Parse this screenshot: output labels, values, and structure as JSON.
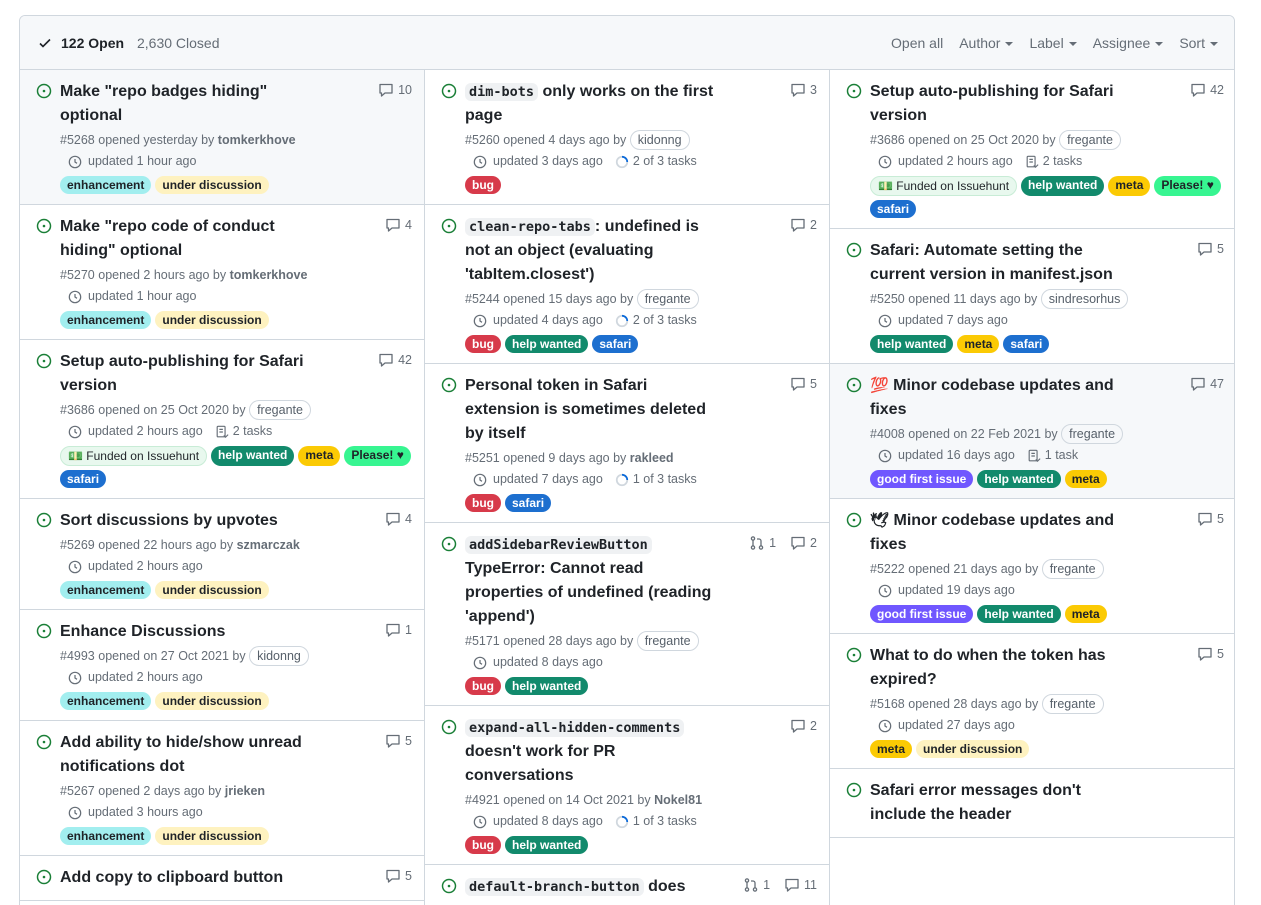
{
  "header": {
    "open_count": "122 Open",
    "closed_count": "2,630 Closed",
    "filters": [
      "Open all",
      "Author",
      "Label",
      "Assignee",
      "Sort"
    ]
  },
  "columns": [
    [
      {
        "title": "Make \"repo badges hiding\" optional",
        "comments": "10",
        "number": "#5268",
        "opened": "opened yesterday by",
        "author": "tomkerkhove",
        "updated": "updated 1 hour ago",
        "labels": [
          "enhancement",
          "under discussion"
        ]
      },
      {
        "title": "Make \"repo code of conduct hiding\" optional",
        "comments": "4",
        "number": "#5270",
        "opened": "opened 2 hours ago by",
        "author": "tomkerkhove",
        "updated": "updated 1 hour ago",
        "labels": [
          "enhancement",
          "under discussion"
        ]
      },
      {
        "title": "Setup auto-publishing for Safari version",
        "comments": "42",
        "number": "#3686",
        "opened": "opened on 25 Oct 2020 by",
        "author": "fregante",
        "updated": "updated 2 hours ago",
        "tasks": "2 tasks",
        "labels": [
          "💵 Funded on Issuehunt",
          "help wanted",
          "meta",
          "Please! ♥",
          "safari"
        ]
      },
      {
        "title": "Sort discussions by upvotes",
        "comments": "4",
        "number": "#5269",
        "opened": "opened 22 hours ago by",
        "author": "szmarczak",
        "updated": "updated 2 hours ago",
        "labels": [
          "enhancement",
          "under discussion"
        ]
      },
      {
        "title": "Enhance Discussions",
        "comments": "1",
        "number": "#4993",
        "opened": "opened on 27 Oct 2021 by",
        "author": "kidonng",
        "updated": "updated 2 hours ago",
        "labels": [
          "enhancement",
          "under discussion"
        ]
      },
      {
        "title": "Add ability to hide/show unread notifications dot",
        "comments": "5",
        "number": "#5267",
        "opened": "opened 2 days ago by",
        "author": "jrieken",
        "updated": "updated 3 hours ago",
        "labels": [
          "enhancement",
          "under discussion"
        ]
      },
      {
        "title": "Add copy to clipboard button",
        "comments": "5"
      }
    ],
    [
      {
        "code": "dim-bots",
        "title": " only works on the first page",
        "comments": "3",
        "number": "#5260",
        "opened": "opened 4 days ago by",
        "author": "kidonng",
        "updated": "updated 3 days ago",
        "tasks": "2 of 3 tasks",
        "labels": [
          "bug"
        ]
      },
      {
        "code": "clean-repo-tabs",
        "title": ": undefined is not an object (evaluating 'tabItem.closest')",
        "comments": "2",
        "number": "#5244",
        "opened": "opened 15 days ago by",
        "author": "fregante",
        "updated": "updated 4 days ago",
        "tasks": "2 of 3 tasks",
        "labels": [
          "bug",
          "help wanted",
          "safari"
        ]
      },
      {
        "title": "Personal token in Safari extension is sometimes deleted by itself",
        "comments": "5",
        "number": "#5251",
        "opened": "opened 9 days ago by",
        "author": "rakleed",
        "updated": "updated 7 days ago",
        "tasks": "1 of 3 tasks",
        "labels": [
          "bug",
          "safari"
        ]
      },
      {
        "code": "addSidebarReviewButton",
        "title": " TypeError: Cannot read properties of undefined (reading 'append')",
        "prs": "1",
        "comments": "2",
        "number": "#5171",
        "opened": "opened 28 days ago by",
        "author": "fregante",
        "updated": "updated 8 days ago",
        "labels": [
          "bug",
          "help wanted"
        ]
      },
      {
        "code": "expand-all-hidden-comments",
        "title": " doesn't work for PR conversations",
        "comments": "2",
        "number": "#4921",
        "opened": "opened on 14 Oct 2021 by",
        "author": "Nokel81",
        "updated": "updated 8 days ago",
        "tasks": "1 of 3 tasks",
        "labels": [
          "bug",
          "help wanted"
        ]
      },
      {
        "code": "default-branch-button",
        "title": " does",
        "prs": "1",
        "comments": "11"
      }
    ],
    [
      {
        "title": "Setup auto-publishing for Safari version",
        "comments": "42",
        "number": "#3686",
        "opened": "opened on 25 Oct 2020 by",
        "author": "fregante",
        "updated": "updated 2 hours ago",
        "tasks": "2 tasks",
        "labels": [
          "💵 Funded on Issuehunt",
          "help wanted",
          "meta",
          "Please! ♥",
          "safari"
        ]
      },
      {
        "title": "Safari: Automate setting the current version in manifest.json",
        "comments": "5",
        "number": "#5250",
        "opened": "opened 11 days ago by",
        "author": "sindresorhus",
        "updated": "updated 7 days ago",
        "labels": [
          "help wanted",
          "meta",
          "safari"
        ]
      },
      {
        "emoji": "💯",
        "title": "Minor codebase updates and fixes",
        "comments": "47",
        "number": "#4008",
        "opened": "opened on 22 Feb 2021 by",
        "author": "fregante",
        "updated": "updated 16 days ago",
        "tasks": "1 task",
        "labels": [
          "good first issue",
          "help wanted",
          "meta"
        ]
      },
      {
        "emoji": "🕊",
        "title": "Minor codebase updates and fixes",
        "comments": "5",
        "number": "#5222",
        "opened": "opened 21 days ago by",
        "author": "fregante",
        "updated": "updated 19 days ago",
        "labels": [
          "good first issue",
          "help wanted",
          "meta"
        ]
      },
      {
        "title": "What to do when the token has expired?",
        "comments": "5",
        "number": "#5168",
        "opened": "opened 28 days ago by",
        "author": "fregante",
        "updated": "updated 27 days ago",
        "labels": [
          "meta",
          "under discussion"
        ]
      },
      {
        "title": "Safari error messages don't include the header"
      }
    ]
  ],
  "colors": {
    "open": "#1a7f37",
    "border": "#d0d7de"
  }
}
